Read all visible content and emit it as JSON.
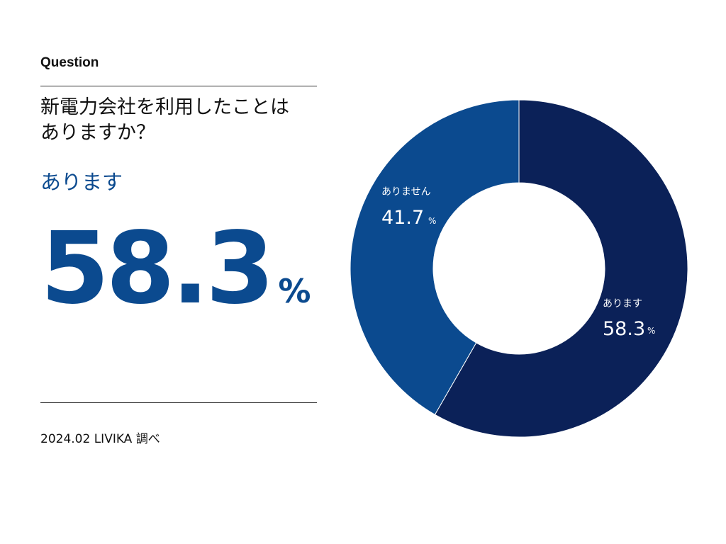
{
  "section_label": "Question",
  "question": [
    "新電力会社を利用したことは",
    "ありますか？"
  ],
  "highlight": {
    "label": "あります",
    "value": "58.3",
    "unit": "%"
  },
  "source": "2024.02 LIVIKA 調べ",
  "colors": {
    "accent": "#0b4a8f",
    "series_yes": "#0b2158",
    "series_no": "#0b4a8f",
    "rule": "#333333"
  },
  "chart_data": {
    "type": "pie",
    "donut": true,
    "title": "",
    "slices": [
      {
        "label": "あります",
        "value": 58.3,
        "unit": "%",
        "color": "#0b2158"
      },
      {
        "label": "ありません",
        "value": 41.7,
        "unit": "%",
        "color": "#0b4a8f"
      }
    ]
  }
}
